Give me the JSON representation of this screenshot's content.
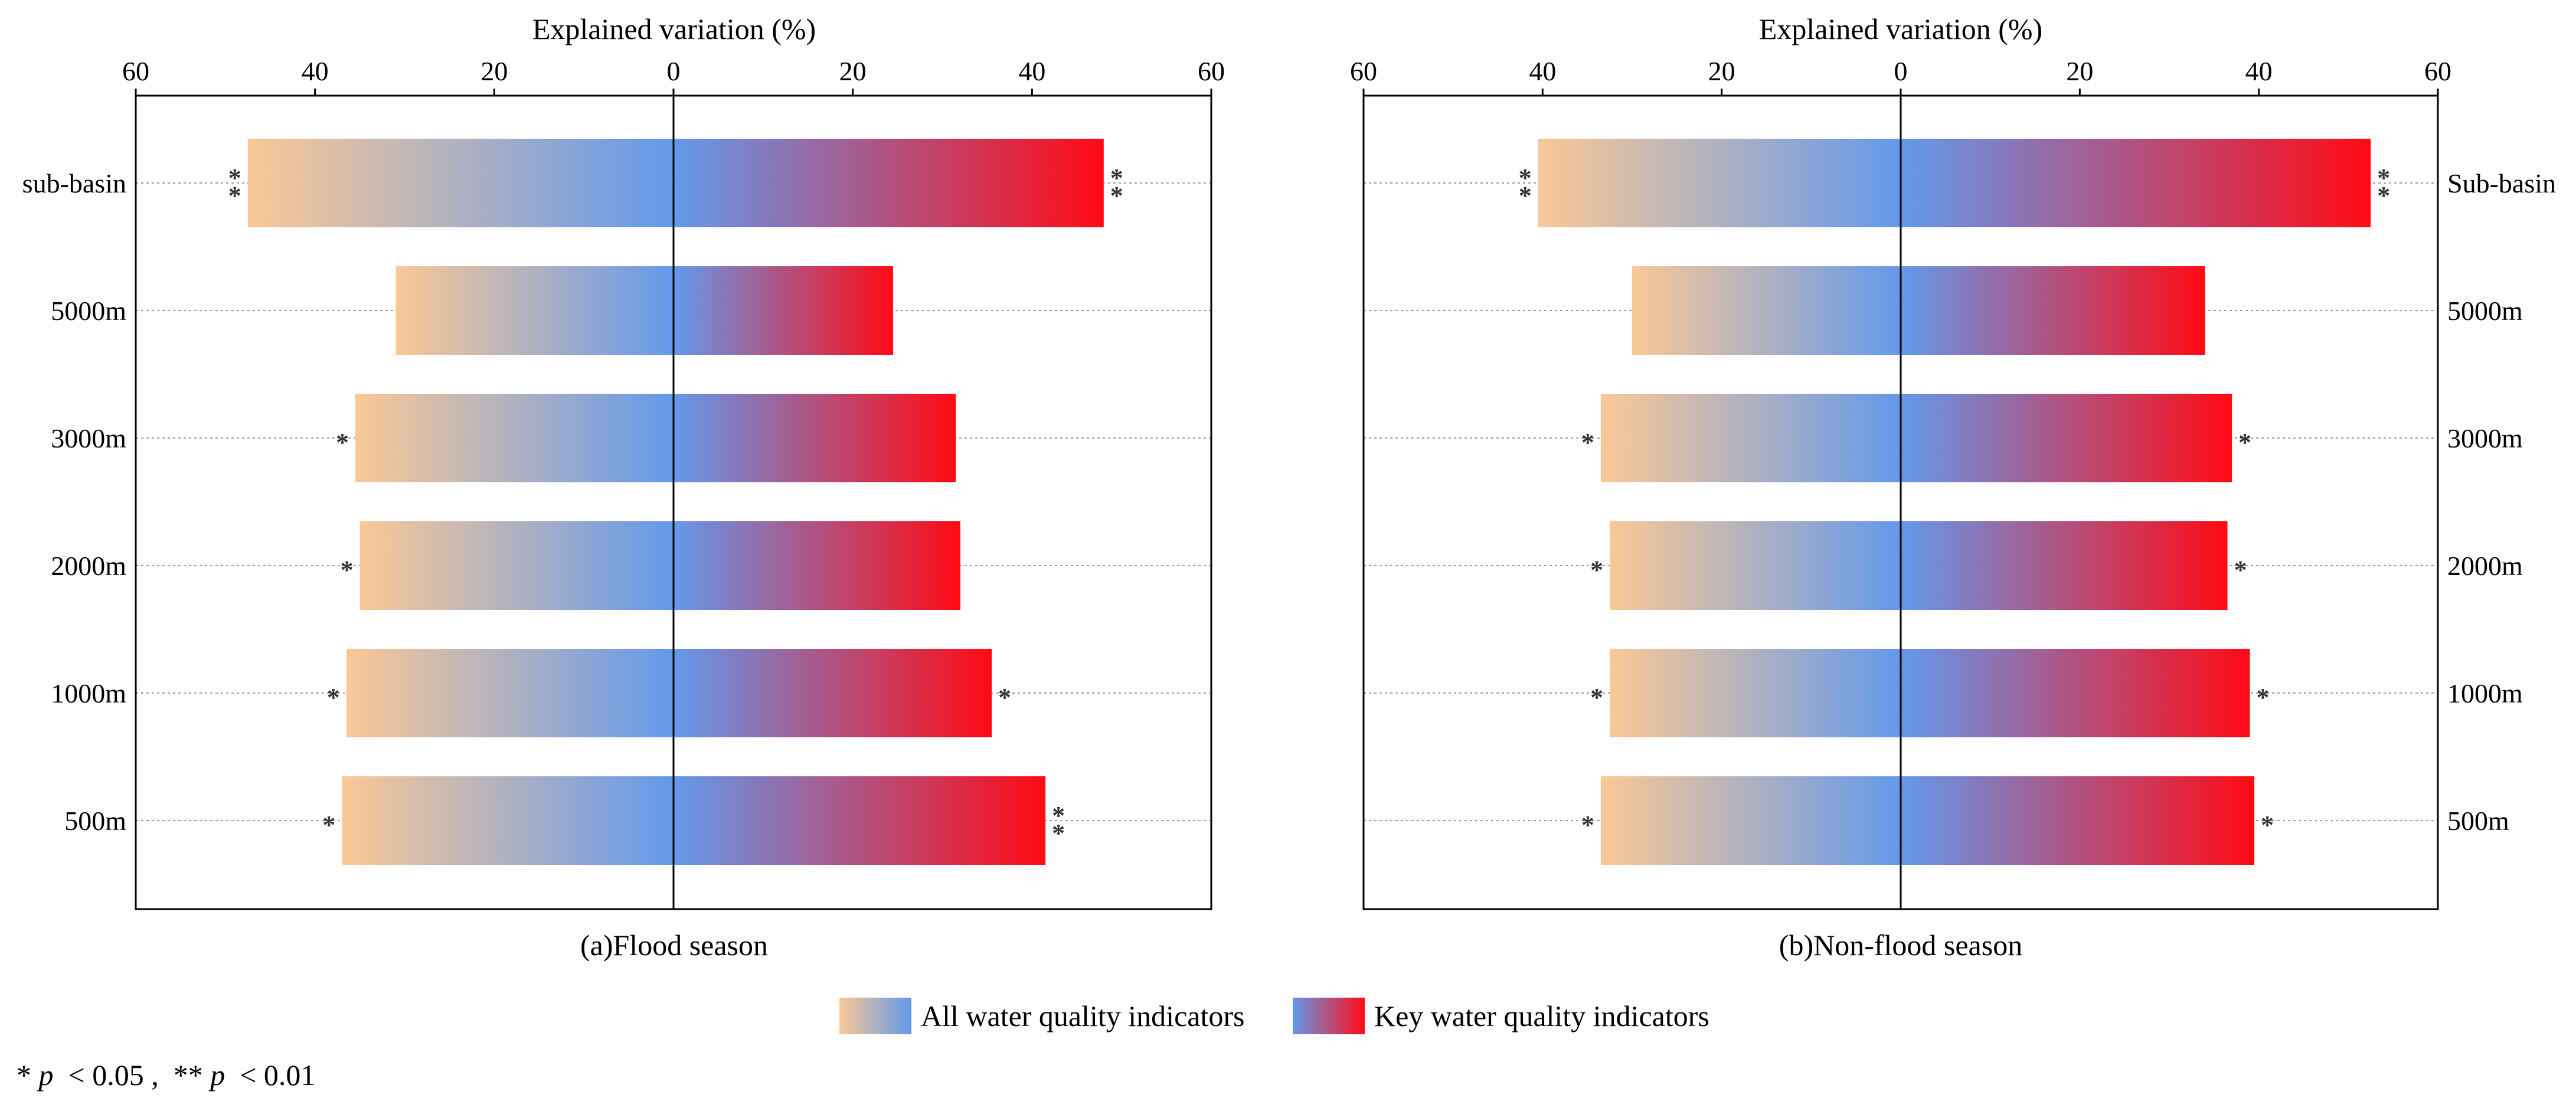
{
  "colors": {
    "all_start": "#FAC896",
    "all_end": "#6399EB",
    "key_start": "#6399EB",
    "key_end": "#FF0A14"
  },
  "chart_data": [
    {
      "type": "bar",
      "orientation": "diverging-horizontal",
      "id": "flood",
      "caption": "(a)Flood season",
      "xlabel": "Explained variation (%)",
      "xlim": [
        -60,
        60
      ],
      "xticks": [
        -60,
        -40,
        -20,
        0,
        20,
        40,
        60
      ],
      "xtick_labels": [
        "60",
        "40",
        "20",
        "0",
        "20",
        "40",
        "60"
      ],
      "categories": [
        "sub-basin",
        "5000m",
        "3000m",
        "2000m",
        "1000m",
        "500m"
      ],
      "category_side": "left",
      "series": [
        {
          "name": "All water quality indicators",
          "direction": "left",
          "values": [
            47.5,
            31.0,
            35.5,
            35.0,
            36.5,
            37.0
          ],
          "significance": [
            "**",
            "",
            "*",
            "*",
            "*",
            "*"
          ]
        },
        {
          "name": "Key water quality indicators",
          "direction": "right",
          "values": [
            48.0,
            24.5,
            31.5,
            32.0,
            35.5,
            41.5
          ],
          "significance": [
            "**",
            "",
            "",
            "",
            "*",
            "**"
          ]
        }
      ]
    },
    {
      "type": "bar",
      "orientation": "diverging-horizontal",
      "id": "nonflood",
      "caption": "(b)Non-flood season",
      "xlabel": "Explained variation (%)",
      "xlim": [
        -60,
        60
      ],
      "xticks": [
        -60,
        -40,
        -20,
        0,
        20,
        40,
        60
      ],
      "xtick_labels": [
        "60",
        "40",
        "20",
        "0",
        "20",
        "40",
        "60"
      ],
      "categories": [
        "Sub-basin",
        "5000m",
        "3000m",
        "2000m",
        "1000m",
        "500m"
      ],
      "category_side": "right",
      "series": [
        {
          "name": "All water quality indicators",
          "direction": "left",
          "values": [
            40.5,
            30.0,
            33.5,
            32.5,
            32.5,
            33.5
          ],
          "significance": [
            "**",
            "",
            "*",
            "*",
            "*",
            "*"
          ]
        },
        {
          "name": "Key water quality indicators",
          "direction": "right",
          "values": [
            52.5,
            34.0,
            37.0,
            36.5,
            39.0,
            39.5
          ],
          "significance": [
            "**",
            "",
            "*",
            "*",
            "*",
            "*"
          ]
        }
      ]
    }
  ],
  "legend": {
    "items": [
      {
        "label": "All water quality indicators"
      },
      {
        "label": "Key water quality indicators"
      }
    ]
  },
  "footnote": {
    "star1": "*",
    "p1": "p",
    "text1": " < 0.05 , ",
    "star2": "**",
    "p2": "p",
    "text2": " < 0.01"
  }
}
